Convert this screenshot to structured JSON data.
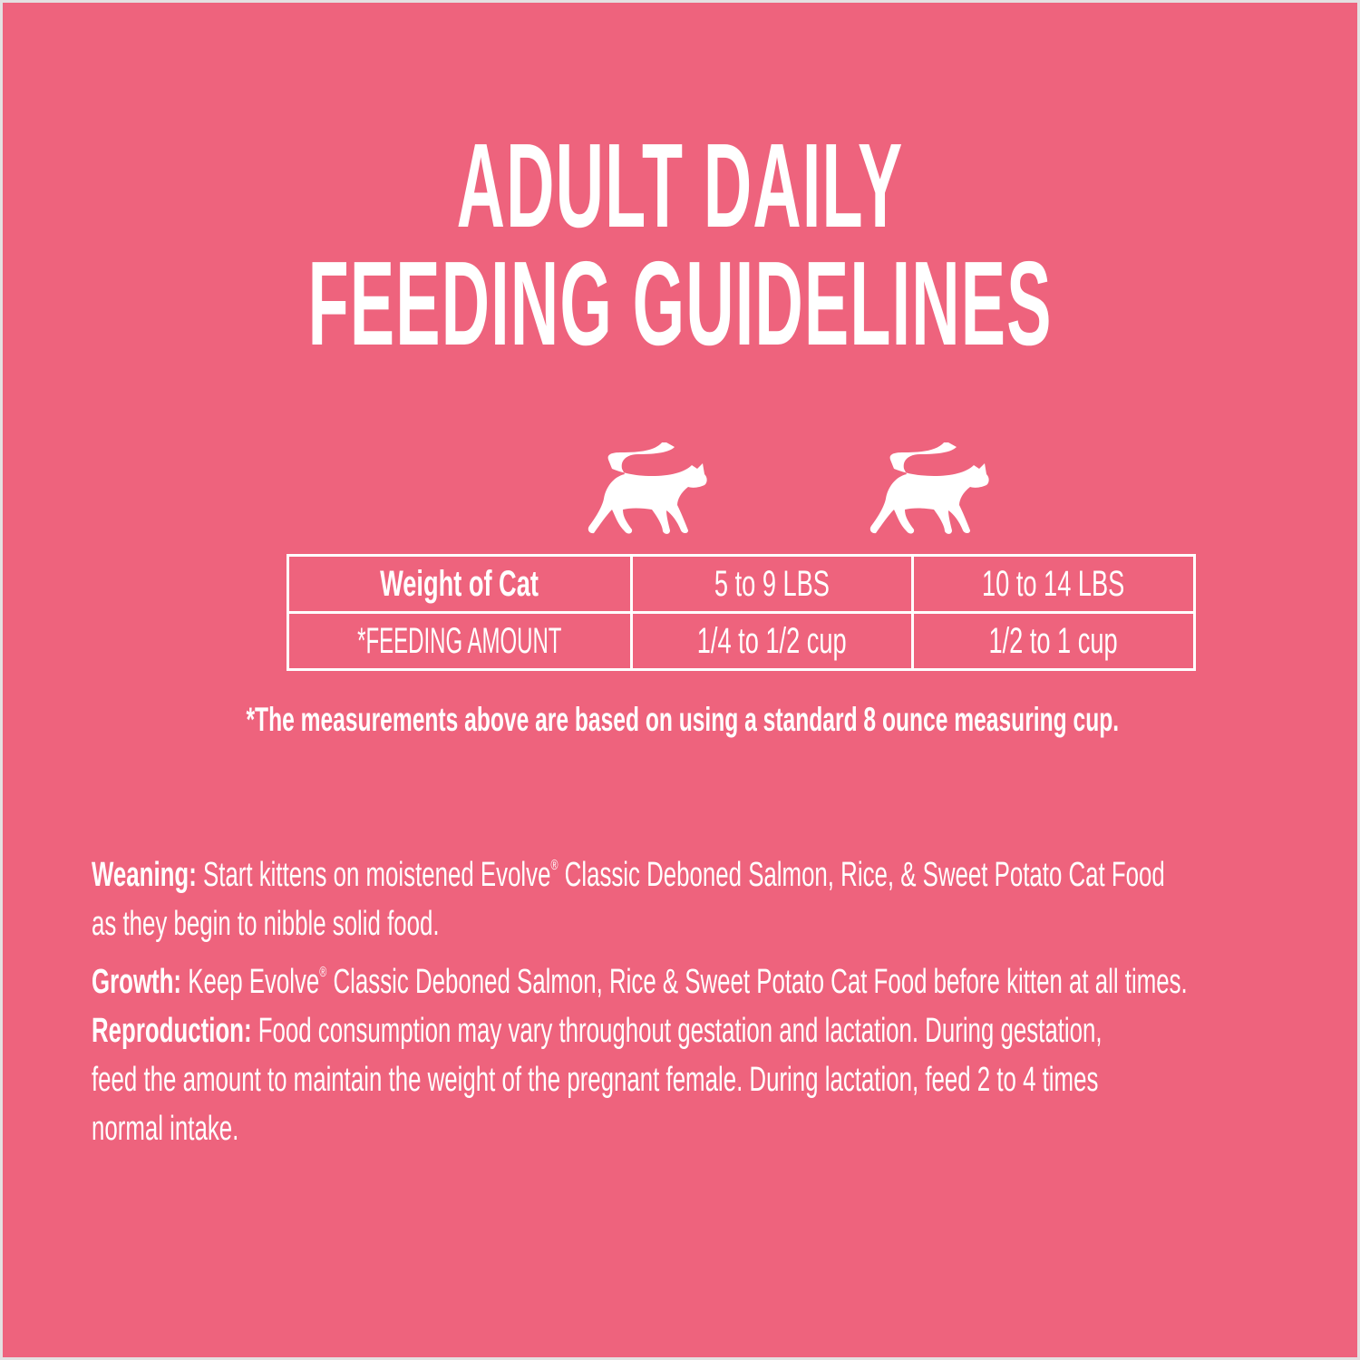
{
  "colors": {
    "background": "#ee637d",
    "text": "#ffffff"
  },
  "title": {
    "line1": "ADULT DAILY",
    "line2": "FEEDING GUIDELINES"
  },
  "icons": [
    "cat-icon",
    "cat-icon"
  ],
  "table": {
    "rows": [
      [
        "Weight of Cat",
        "5 to 9 LBS",
        "10 to 14 LBS"
      ],
      [
        "*FEEDING AMOUNT",
        "1/4 to 1/2 cup",
        "1/2 to 1 cup"
      ]
    ]
  },
  "footnote": "*The measurements above are based on using a standard 8 ounce measuring cup.",
  "guidelines": {
    "weaning": {
      "label": "Weaning:",
      "text_a": " Start kittens on moistened Evolve",
      "reg": "®",
      "text_b": " Classic Deboned Salmon, Rice, & Sweet Potato Cat Food",
      "text_c": "as they begin to nibble solid food."
    },
    "growth": {
      "label": "Growth:",
      "text_a": " Keep Evolve",
      "reg": "®",
      "text_b": " Classic Deboned Salmon, Rice & Sweet Potato Cat Food before kitten at all times."
    },
    "reproduction": {
      "label": "Reproduction:",
      "text_a": " Food consumption may vary throughout gestation and lactation. During gestation,",
      "text_b": "feed the amount to maintain the weight of the pregnant female. During lactation, feed 2 to 4 times",
      "text_c": "normal intake."
    }
  }
}
